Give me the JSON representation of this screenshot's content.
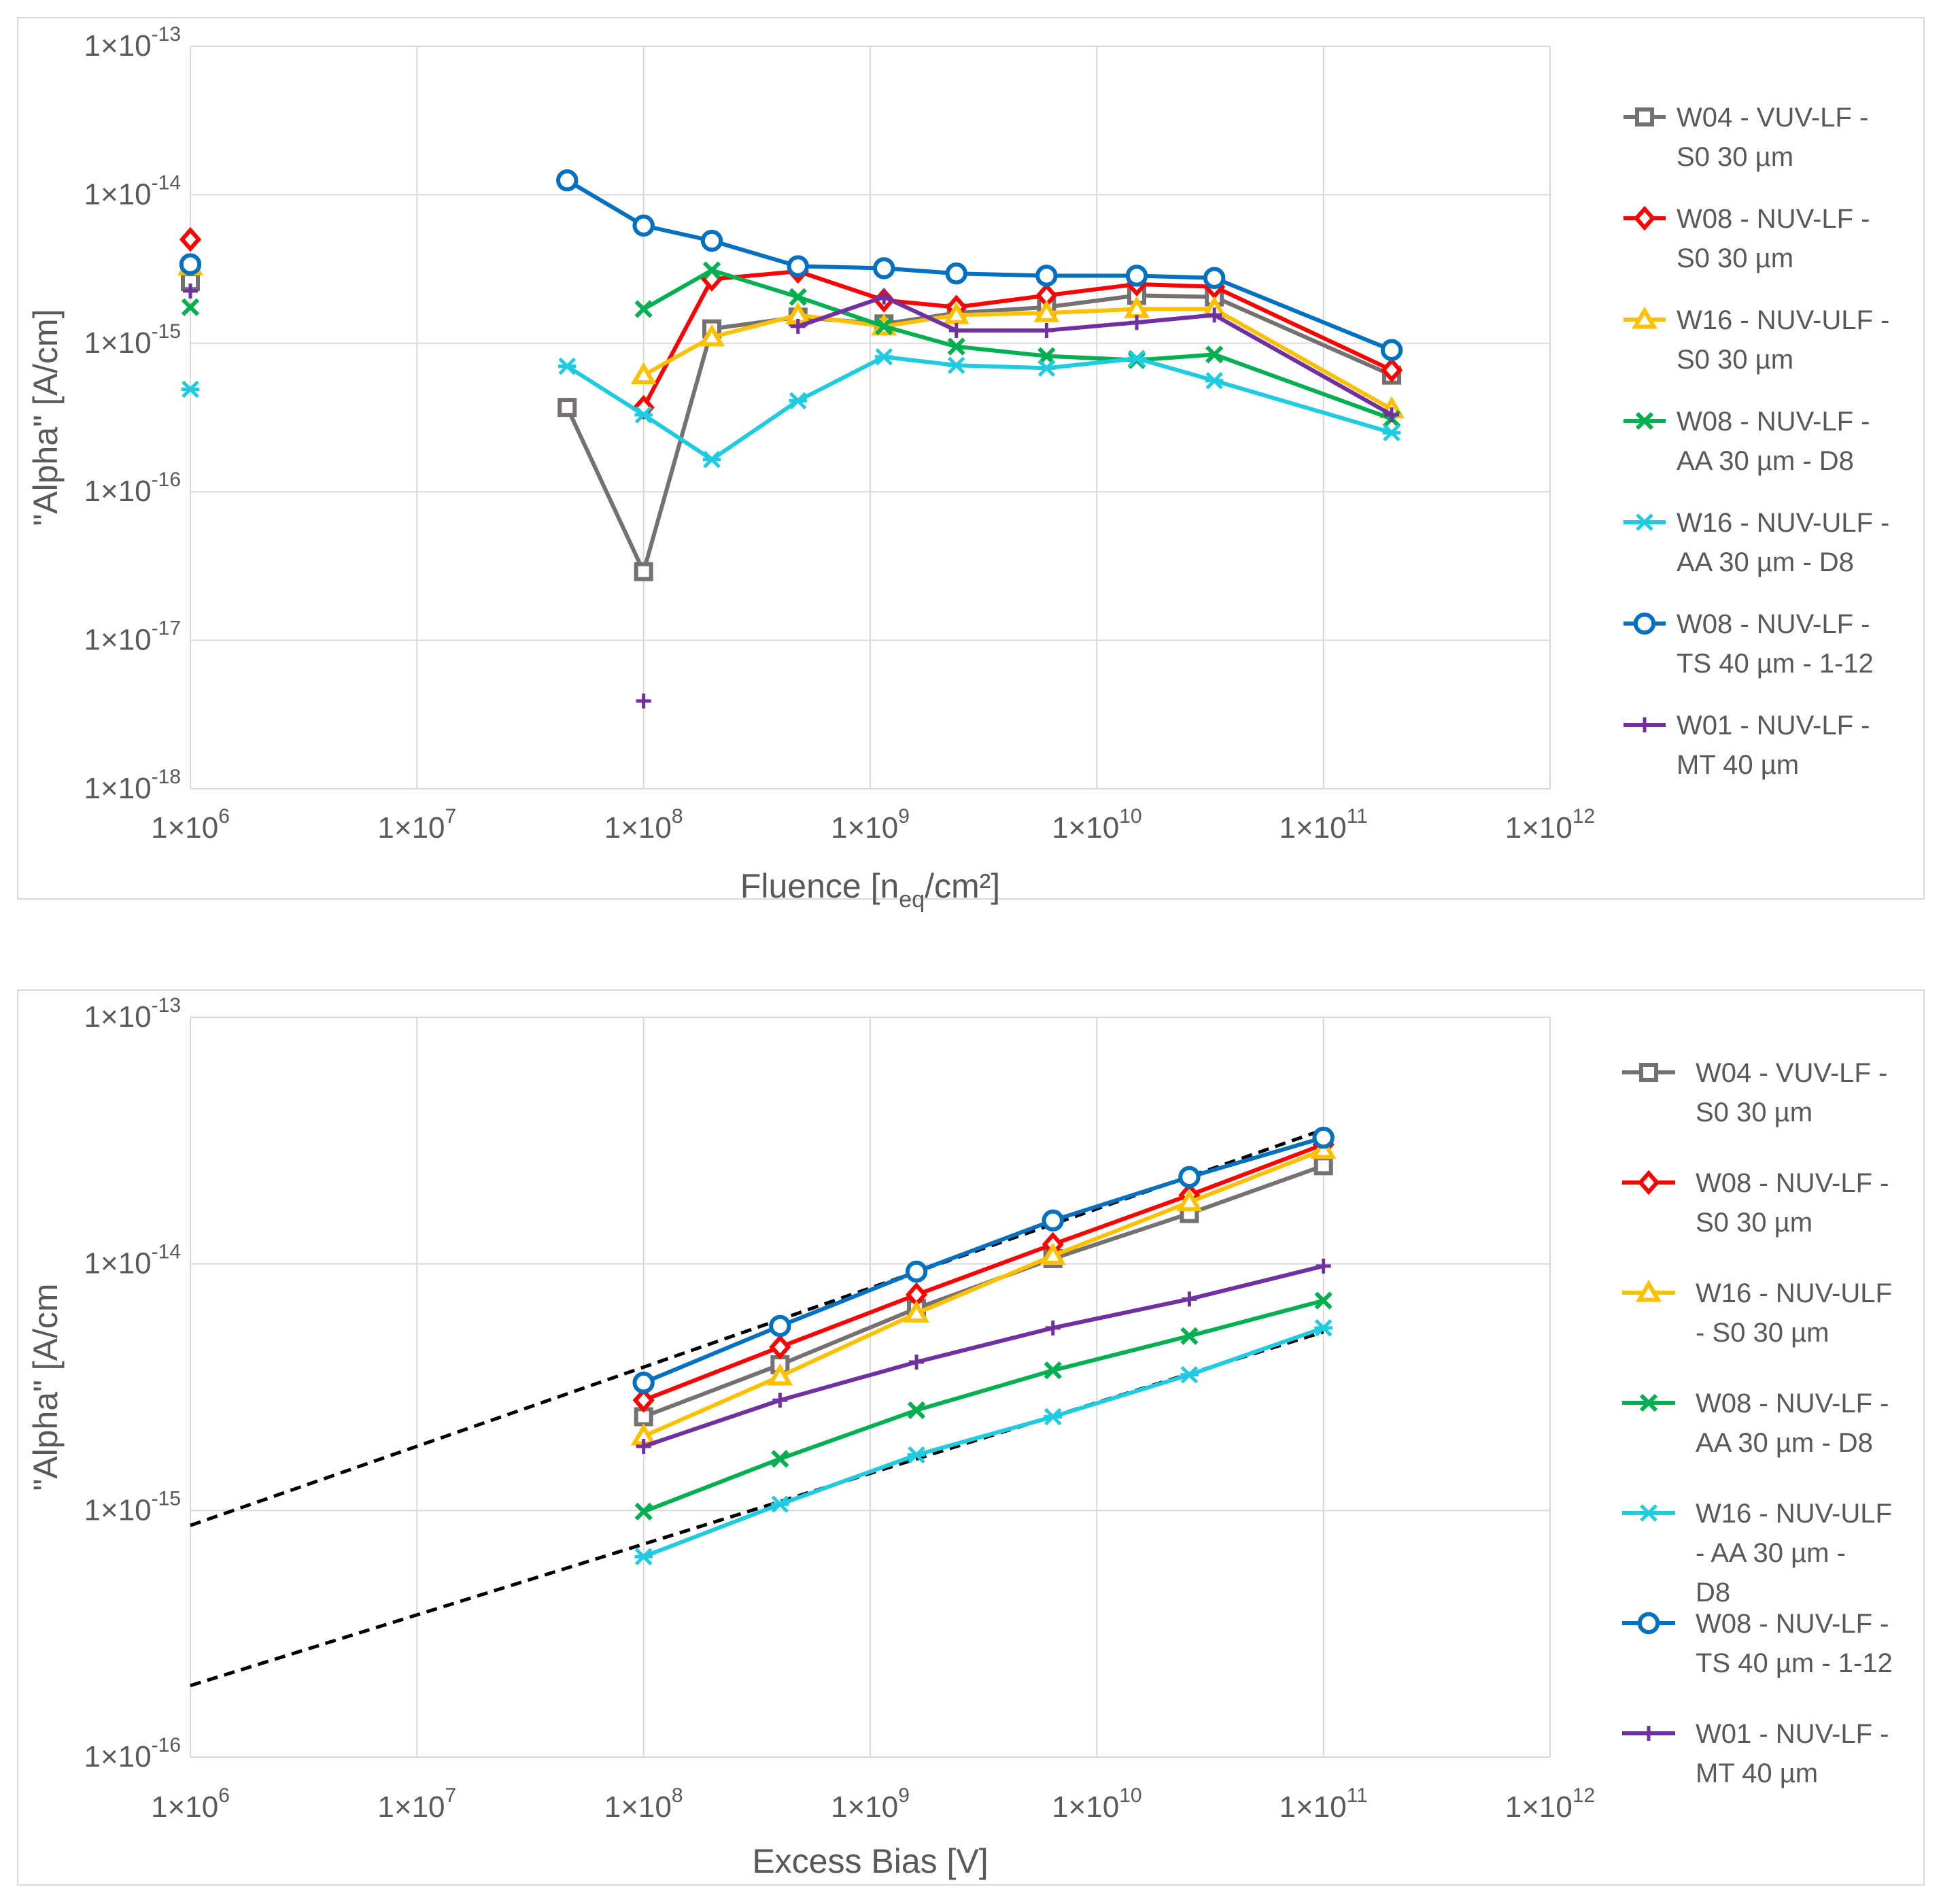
{
  "chart_data": [
    {
      "type": "line",
      "scale": "log-log",
      "xlabel": {
        "main": "Fluence [n",
        "sub": "eq",
        "tail": "/cm²]"
      },
      "ylabel": "\"Alpha\" [A/cm]",
      "xlim": [
        1000000.0,
        1000000000000.0
      ],
      "ylim": [
        1e-18,
        1e-13
      ],
      "x_tick_labels": [
        {
          "base": "1×10",
          "exp": "6"
        },
        {
          "base": "1×10",
          "exp": "7"
        },
        {
          "base": "1×10",
          "exp": "8"
        },
        {
          "base": "1×10",
          "exp": "9"
        },
        {
          "base": "1×10",
          "exp": "10"
        },
        {
          "base": "1×10",
          "exp": "11"
        },
        {
          "base": "1×10",
          "exp": "12"
        }
      ],
      "y_tick_labels": [
        {
          "base": "1×10",
          "exp": "-13"
        },
        {
          "base": "1×10",
          "exp": "-14"
        },
        {
          "base": "1×10",
          "exp": "-15"
        },
        {
          "base": "1×10",
          "exp": "-16"
        },
        {
          "base": "1×10",
          "exp": "-17"
        },
        {
          "base": "1×10",
          "exp": "-18"
        }
      ],
      "legend_position": "right",
      "series": [
        {
          "name": "W04 - VUV-LF - S0 30 µm",
          "legend_lines": [
            "W04 - VUV-LF -",
            "S0 30 µm"
          ],
          "color": "#767171",
          "marker": "square",
          "isolated": [
            [
              1000000.0,
              2.6e-15
            ]
          ],
          "points": [
            [
              46000000.0,
              3.7e-16
            ],
            [
              100000000.0,
              2.9e-17
            ],
            [
              200000000.0,
              1.25e-15
            ],
            [
              480000000.0,
              1.5e-15
            ],
            [
              1150000000.0,
              1.35e-15
            ],
            [
              2400000000.0,
              1.6e-15
            ],
            [
              6000000000.0,
              1.75e-15
            ],
            [
              15000000000.0,
              2.1e-15
            ],
            [
              33000000000.0,
              2.05e-15
            ],
            [
              200000000000.0,
              6.1e-16
            ]
          ]
        },
        {
          "name": "W08 - NUV-LF - S0 30 µm",
          "legend_lines": [
            "W08 - NUV-LF -",
            "S0 30 µm"
          ],
          "color": "#ff0000",
          "marker": "diamond",
          "isolated": [
            [
              1000000.0,
              5e-15
            ]
          ],
          "points": [
            [
              100000000.0,
              3.7e-16
            ],
            [
              200000000.0,
              2.7e-15
            ],
            [
              480000000.0,
              3.05e-15
            ],
            [
              1150000000.0,
              1.95e-15
            ],
            [
              2400000000.0,
              1.75e-15
            ],
            [
              6000000000.0,
              2.1e-15
            ],
            [
              15000000000.0,
              2.5e-15
            ],
            [
              33000000000.0,
              2.4e-15
            ],
            [
              200000000000.0,
              6.6e-16
            ]
          ]
        },
        {
          "name": "W16 - NUV-ULF - S0 30 µm",
          "legend_lines": [
            "W16 - NUV-ULF -",
            "S0 30 µm"
          ],
          "color": "#ffc000",
          "marker": "triangle",
          "isolated": [
            [
              1000000.0,
              3.3e-15
            ]
          ],
          "points": [
            [
              100000000.0,
              6.1e-16
            ],
            [
              200000000.0,
              1.1e-15
            ],
            [
              480000000.0,
              1.55e-15
            ],
            [
              1150000000.0,
              1.3e-15
            ],
            [
              2400000000.0,
              1.55e-15
            ],
            [
              6000000000.0,
              1.6e-15
            ],
            [
              15000000000.0,
              1.7e-15
            ],
            [
              33000000000.0,
              1.7e-15
            ],
            [
              200000000000.0,
              3.6e-16
            ]
          ]
        },
        {
          "name": "W08 - NUV-LF - AA 30 µm - D8",
          "legend_lines": [
            "W08 - NUV-LF -",
            "AA 30 µm - D8"
          ],
          "color": "#00b050",
          "marker": "x",
          "isolated": [
            [
              1000000.0,
              1.75e-15
            ]
          ],
          "points": [
            [
              100000000.0,
              1.7e-15
            ],
            [
              200000000.0,
              3.1e-15
            ],
            [
              480000000.0,
              2.05e-15
            ],
            [
              1150000000.0,
              1.3e-15
            ],
            [
              2400000000.0,
              9.5e-16
            ],
            [
              6000000000.0,
              8.2e-16
            ],
            [
              15000000000.0,
              7.7e-16
            ],
            [
              33000000000.0,
              8.4e-16
            ],
            [
              200000000000.0,
              3.1e-16
            ]
          ]
        },
        {
          "name": "W16 - NUV-ULF - AA 30 µm - D8",
          "legend_lines": [
            "W16 - NUV-ULF -",
            "AA 30 µm - D8"
          ],
          "color": "#1ecbe1",
          "marker": "asterisk",
          "isolated": [
            [
              1000000.0,
              4.9e-16
            ]
          ],
          "points": [
            [
              46000000.0,
              7e-16
            ],
            [
              100000000.0,
              3.3e-16
            ],
            [
              200000000.0,
              1.65e-16
            ],
            [
              480000000.0,
              4.1e-16
            ],
            [
              1150000000.0,
              8.1e-16
            ],
            [
              2400000000.0,
              7.1e-16
            ],
            [
              6000000000.0,
              6.8e-16
            ],
            [
              15000000000.0,
              7.9e-16
            ],
            [
              33000000000.0,
              5.6e-16
            ],
            [
              200000000000.0,
              2.5e-16
            ]
          ]
        },
        {
          "name": "W08 - NUV-LF - TS 40 µm - 1-12",
          "legend_lines": [
            "W08 - NUV-LF -",
            "TS 40 µm - 1-12"
          ],
          "color": "#0070c0",
          "marker": "circle",
          "isolated": [
            [
              1000000.0,
              3.4e-15
            ]
          ],
          "points": [
            [
              46000000.0,
              1.25e-14
            ],
            [
              100000000.0,
              6.2e-15
            ],
            [
              200000000.0,
              4.9e-15
            ],
            [
              480000000.0,
              3.3e-15
            ],
            [
              1150000000.0,
              3.2e-15
            ],
            [
              2400000000.0,
              2.95e-15
            ],
            [
              6000000000.0,
              2.85e-15
            ],
            [
              15000000000.0,
              2.85e-15
            ],
            [
              33000000000.0,
              2.75e-15
            ],
            [
              200000000000.0,
              9e-16
            ]
          ]
        },
        {
          "name": "W01 - NUV-LF - MT 40 µm",
          "legend_lines": [
            "W01 - NUV-LF -",
            "MT 40 µm"
          ],
          "color": "#7030a0",
          "marker": "plus",
          "isolated": [
            [
              1000000.0,
              2.25e-15
            ],
            [
              100000000.0,
              3.9e-18
            ]
          ],
          "points": [
            [
              480000000.0,
              1.3e-15
            ],
            [
              1150000000.0,
              2.05e-15
            ],
            [
              2400000000.0,
              1.22e-15
            ],
            [
              6000000000.0,
              1.22e-15
            ],
            [
              15000000000.0,
              1.38e-15
            ],
            [
              33000000000.0,
              1.55e-15
            ],
            [
              200000000000.0,
              3.3e-16
            ]
          ]
        }
      ]
    },
    {
      "type": "line",
      "scale": "log-log",
      "xlabel": {
        "main": "Excess Bias [V]",
        "sub": "",
        "tail": ""
      },
      "ylabel": "\"Alpha\" [A/cm",
      "xlim": [
        1000000.0,
        1000000000000.0
      ],
      "ylim": [
        1e-16,
        1e-13
      ],
      "x_tick_labels": [
        {
          "base": "1×10",
          "exp": "6"
        },
        {
          "base": "1×10",
          "exp": "7"
        },
        {
          "base": "1×10",
          "exp": "8"
        },
        {
          "base": "1×10",
          "exp": "9"
        },
        {
          "base": "1×10",
          "exp": "10"
        },
        {
          "base": "1×10",
          "exp": "11"
        },
        {
          "base": "1×10",
          "exp": "12"
        }
      ],
      "y_tick_labels": [
        {
          "base": "1×10",
          "exp": "-13"
        },
        {
          "base": "1×10",
          "exp": "-14"
        },
        {
          "base": "1×10",
          "exp": "-15"
        },
        {
          "base": "1×10",
          "exp": "-16"
        }
      ],
      "legend_position": "right",
      "trend_lines": [
        {
          "style": "dashed",
          "color": "#000000",
          "points": [
            [
              1000000.0,
              8.7e-16
            ],
            [
              100000000000.0,
              3.5e-14
            ]
          ]
        },
        {
          "style": "dashed",
          "color": "#000000",
          "points": [
            [
              1000000.0,
              1.95e-16
            ],
            [
              100000000000.0,
              5.3e-15
            ]
          ]
        }
      ],
      "series": [
        {
          "name": "W04 - VUV-LF - S0 30 µm",
          "legend_lines": [
            "W04 - VUV-LF -",
            "S0 30 µm"
          ],
          "color": "#767171",
          "marker": "square",
          "points": [
            [
              100000000.0,
              2.4e-15
            ],
            [
              400000000.0,
              3.9e-15
            ],
            [
              1600000000.0,
              6.6e-15
            ],
            [
              6400000000.0,
              1.05e-14
            ],
            [
              25600000000.0,
              1.6e-14
            ],
            [
              100000000000.0,
              2.5e-14
            ]
          ]
        },
        {
          "name": "W08 - NUV-LF - S0 30 µm",
          "legend_lines": [
            "W08 - NUV-LF -",
            "S0 30 µm"
          ],
          "color": "#ff0000",
          "marker": "diamond",
          "points": [
            [
              100000000.0,
              2.8e-15
            ],
            [
              400000000.0,
              4.6e-15
            ],
            [
              1600000000.0,
              7.5e-15
            ],
            [
              6400000000.0,
              1.2e-14
            ],
            [
              25600000000.0,
              1.9e-14
            ],
            [
              100000000000.0,
              3.05e-14
            ]
          ]
        },
        {
          "name": "W16 - NUV-ULF - S0 30 µm",
          "legend_lines": [
            "W16 - NUV-ULF",
            "- S0 30 µm"
          ],
          "color": "#ffc000",
          "marker": "triangle",
          "points": [
            [
              100000000.0,
              2e-15
            ],
            [
              400000000.0,
              3.5e-15
            ],
            [
              1600000000.0,
              6.3e-15
            ],
            [
              6400000000.0,
              1.08e-14
            ],
            [
              25600000000.0,
              1.78e-14
            ],
            [
              100000000000.0,
              2.9e-14
            ]
          ]
        },
        {
          "name": "W08 - NUV-LF - AA 30 µm - D8",
          "legend_lines": [
            "W08 - NUV-LF -",
            "AA 30 µm - D8"
          ],
          "color": "#00b050",
          "marker": "x",
          "points": [
            [
              100000000.0,
              9.9e-16
            ],
            [
              400000000.0,
              1.62e-15
            ],
            [
              1600000000.0,
              2.55e-15
            ],
            [
              6400000000.0,
              3.7e-15
            ],
            [
              25600000000.0,
              5.1e-15
            ],
            [
              100000000000.0,
              7.1e-15
            ]
          ]
        },
        {
          "name": "W16 - NUV-ULF - AA 30 µm - D8",
          "legend_lines": [
            "W16 - NUV-ULF",
            "- AA 30 µm -",
            "D8"
          ],
          "color": "#1ecbe1",
          "marker": "asterisk",
          "points": [
            [
              100000000.0,
              6.5e-16
            ],
            [
              400000000.0,
              1.06e-15
            ],
            [
              1600000000.0,
              1.68e-15
            ],
            [
              6400000000.0,
              2.4e-15
            ],
            [
              25600000000.0,
              3.55e-15
            ],
            [
              100000000000.0,
              5.5e-15
            ]
          ]
        },
        {
          "name": "W08 - NUV-LF - TS 40 µm - 1-12",
          "legend_lines": [
            "W08 - NUV-LF -",
            "TS 40 µm - 1-12"
          ],
          "color": "#0070c0",
          "marker": "circle",
          "points": [
            [
              100000000.0,
              3.3e-15
            ],
            [
              400000000.0,
              5.6e-15
            ],
            [
              1600000000.0,
              9.3e-15
            ],
            [
              6400000000.0,
              1.5e-14
            ],
            [
              25600000000.0,
              2.25e-14
            ],
            [
              100000000000.0,
              3.25e-14
            ]
          ]
        },
        {
          "name": "W01 - NUV-LF - MT 40 µm",
          "legend_lines": [
            "W01 - NUV-LF -",
            "MT 40 µm"
          ],
          "color": "#7030a0",
          "marker": "plus",
          "points": [
            [
              100000000.0,
              1.82e-15
            ],
            [
              400000000.0,
              2.8e-15
            ],
            [
              1600000000.0,
              4e-15
            ],
            [
              6400000000.0,
              5.5e-15
            ],
            [
              25600000000.0,
              7.2e-15
            ],
            [
              100000000000.0,
              9.8e-15
            ]
          ]
        }
      ]
    }
  ]
}
